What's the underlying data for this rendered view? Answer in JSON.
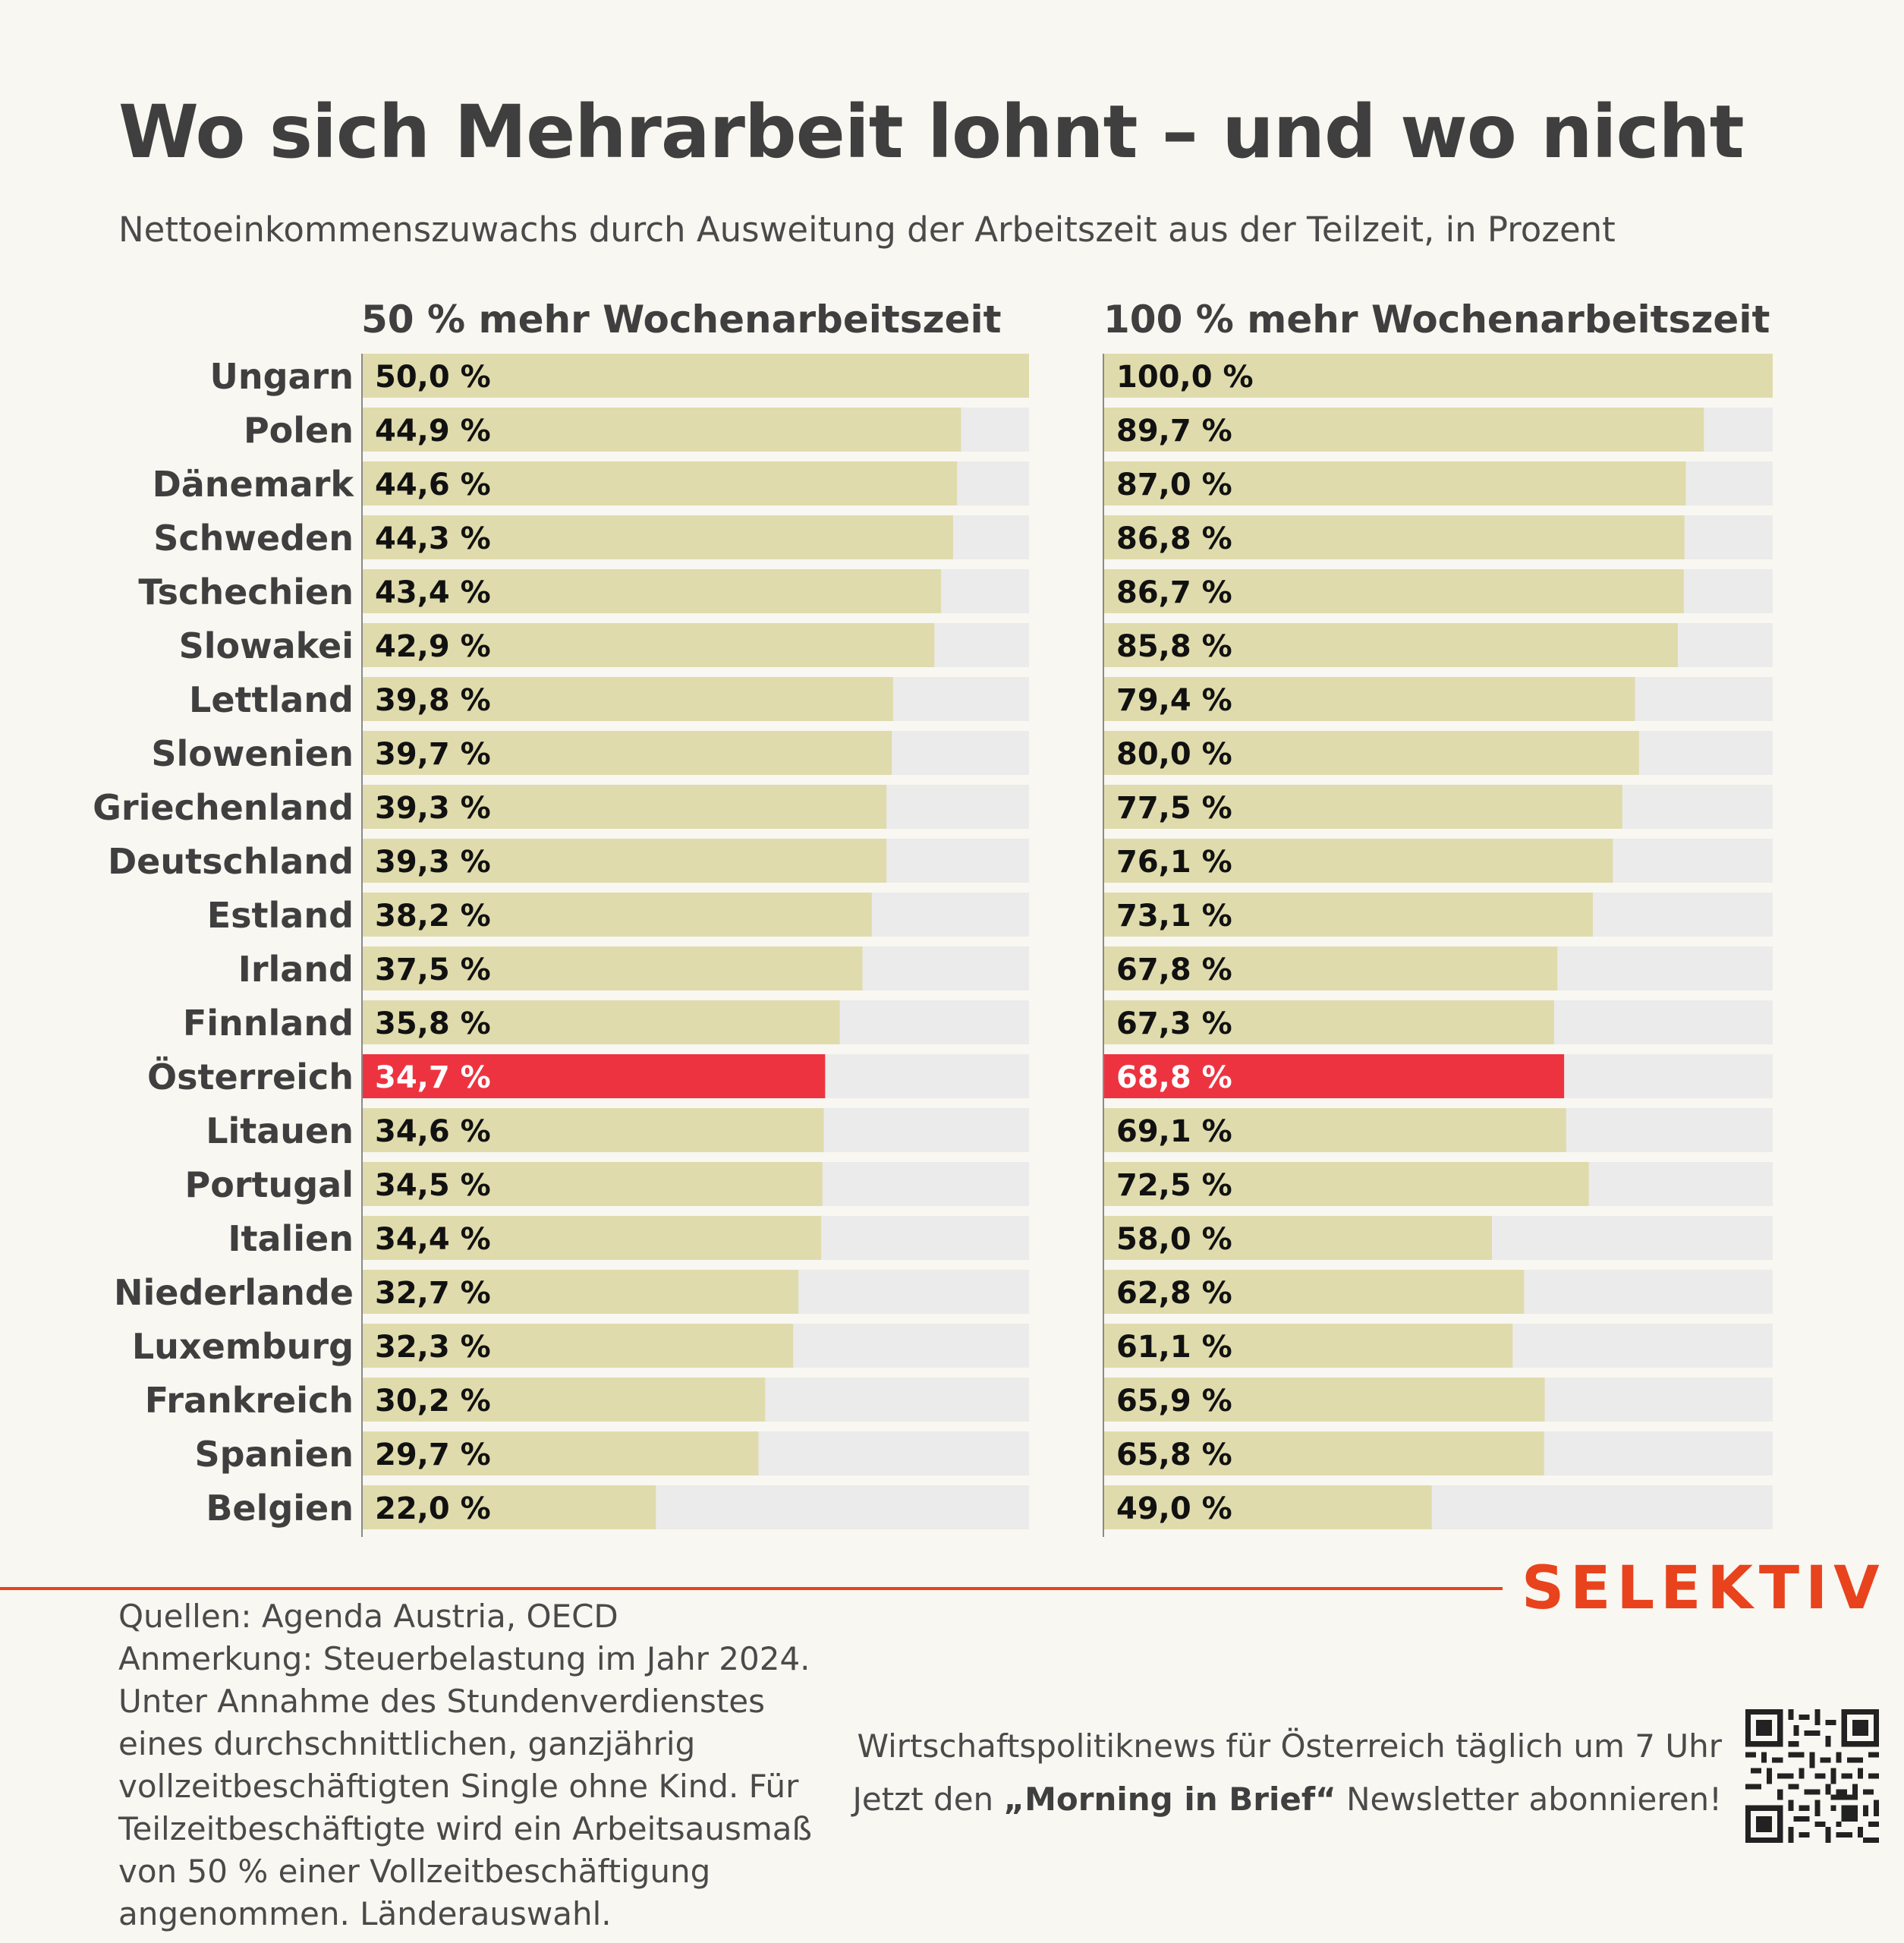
{
  "title": "Wo sich Mehrarbeit lohnt – und wo nicht",
  "subtitle": "Nettoeinkommenszuwachs durch Ausweitung der Arbeitszeit aus der Teilzeit, in Prozent",
  "chart_data": {
    "type": "bar",
    "orientation": "horizontal",
    "categories": [
      "Ungarn",
      "Polen",
      "Dänemark",
      "Schweden",
      "Tschechien",
      "Slowakei",
      "Lettland",
      "Slowenien",
      "Griechenland",
      "Deutschland",
      "Estland",
      "Irland",
      "Finnland",
      "Österreich",
      "Litauen",
      "Portugal",
      "Italien",
      "Niederlande",
      "Luxemburg",
      "Frankreich",
      "Spanien",
      "Belgien"
    ],
    "highlight_category": "Österreich",
    "colors": {
      "bar": "#e0dbac",
      "highlight": "#ee3340",
      "track": "#ebebeb",
      "axis": "#8a8a8a"
    },
    "panels": [
      {
        "name": "50 % mehr Wochenarbeitszeit",
        "xlim": [
          0,
          50
        ],
        "values": [
          50.0,
          44.9,
          44.6,
          44.3,
          43.4,
          42.9,
          39.8,
          39.7,
          39.3,
          39.3,
          38.2,
          37.5,
          35.8,
          34.7,
          34.6,
          34.5,
          34.4,
          32.7,
          32.3,
          30.2,
          29.7,
          22.0
        ],
        "labels": [
          "50,0 %",
          "44,9 %",
          "44,6 %",
          "44,3 %",
          "43,4 %",
          "42,9 %",
          "39,8 %",
          "39,7 %",
          "39,3 %",
          "39,3 %",
          "38,2 %",
          "37,5 %",
          "35,8 %",
          "34,7 %",
          "34,6 %",
          "34,5 %",
          "34,4 %",
          "32,7 %",
          "32,3 %",
          "30,2 %",
          "29,7 %",
          "22,0 %"
        ]
      },
      {
        "name": "100 % mehr Wochenarbeitszeit",
        "xlim": [
          0,
          100
        ],
        "values": [
          100.0,
          89.7,
          87.0,
          86.8,
          86.7,
          85.8,
          79.4,
          80.0,
          77.5,
          76.1,
          73.1,
          67.8,
          67.3,
          68.8,
          69.1,
          72.5,
          58.0,
          62.8,
          61.1,
          65.9,
          65.8,
          49.0
        ],
        "labels": [
          "100,0 %",
          "89,7 %",
          "87,0 %",
          "86,8 %",
          "86,7 %",
          "85,8 %",
          "79,4 %",
          "80,0 %",
          "77,5 %",
          "76,1 %",
          "73,1 %",
          "67,8 %",
          "67,3 %",
          "68,8 %",
          "69,1 %",
          "72,5 %",
          "58,0 %",
          "62,8 %",
          "61,1 %",
          "65,9 %",
          "65,8 %",
          "49,0 %"
        ]
      }
    ]
  },
  "brand": "SELEKTIV",
  "notes": [
    "Quellen: Agenda Austria, OECD",
    "Anmerkung: Steuerbelastung im Jahr 2024.",
    "Unter Annahme des Stundenverdienstes",
    "eines durchschnittlichen, ganzjährig",
    "vollzeitbeschäftigten Single ohne Kind. Für",
    "Teilzeitbeschäftigte wird ein Arbeitsausmaß",
    "von 50 % einer Vollzeitbeschäftigung",
    "angenommen. Länderauswahl."
  ],
  "promo": {
    "line1": "Wirtschaftspolitiknews für Österreich täglich um 7 Uhr",
    "line2_pre": "Jetzt den ",
    "line2_bold": "„Morning in Brief“",
    "line2_post": " Newsletter abonnieren!"
  },
  "qr_icon": "qr-code-icon"
}
